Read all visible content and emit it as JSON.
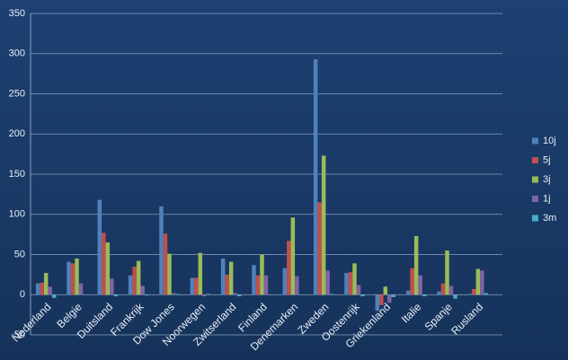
{
  "chart_data": {
    "type": "bar",
    "categories": [
      "Nederland",
      "Belgie",
      "Duitsland",
      "Frankrijk",
      "Dow Jones",
      "Noorwegen",
      "Zwitserland",
      "Finland",
      "Denemarken",
      "Zweden",
      "Oostenrijk",
      "Griekenland",
      "Italie",
      "Spanje",
      "Rusland"
    ],
    "series": [
      {
        "name": "10j",
        "color": "#4f81bd",
        "values": [
          14,
          41,
          118,
          24,
          110,
          21,
          45,
          37,
          33,
          293,
          27,
          -20,
          5,
          4,
          1
        ]
      },
      {
        "name": "5j",
        "color": "#c0504d",
        "values": [
          15,
          39,
          77,
          35,
          76,
          21,
          25,
          24,
          67,
          115,
          28,
          -13,
          33,
          14,
          7
        ]
      },
      {
        "name": "3j",
        "color": "#9bbb59",
        "values": [
          27,
          45,
          65,
          42,
          51,
          52,
          41,
          50,
          96,
          173,
          39,
          10,
          73,
          55,
          32
        ]
      },
      {
        "name": "1j",
        "color": "#8064a2",
        "values": [
          10,
          14,
          20,
          11,
          2,
          -2,
          2,
          24,
          23,
          30,
          12,
          -10,
          24,
          11,
          30
        ]
      },
      {
        "name": "3m",
        "color": "#4bacc6",
        "values": [
          -4,
          0,
          -2,
          -1,
          1,
          1,
          -2,
          0,
          0,
          1,
          -2,
          -3,
          -2,
          -5,
          2
        ]
      }
    ],
    "ylim": [
      -50,
      350
    ],
    "yticks": [
      -50,
      0,
      50,
      100,
      150,
      200,
      250,
      300,
      350
    ],
    "grid": true,
    "legend": "right"
  }
}
